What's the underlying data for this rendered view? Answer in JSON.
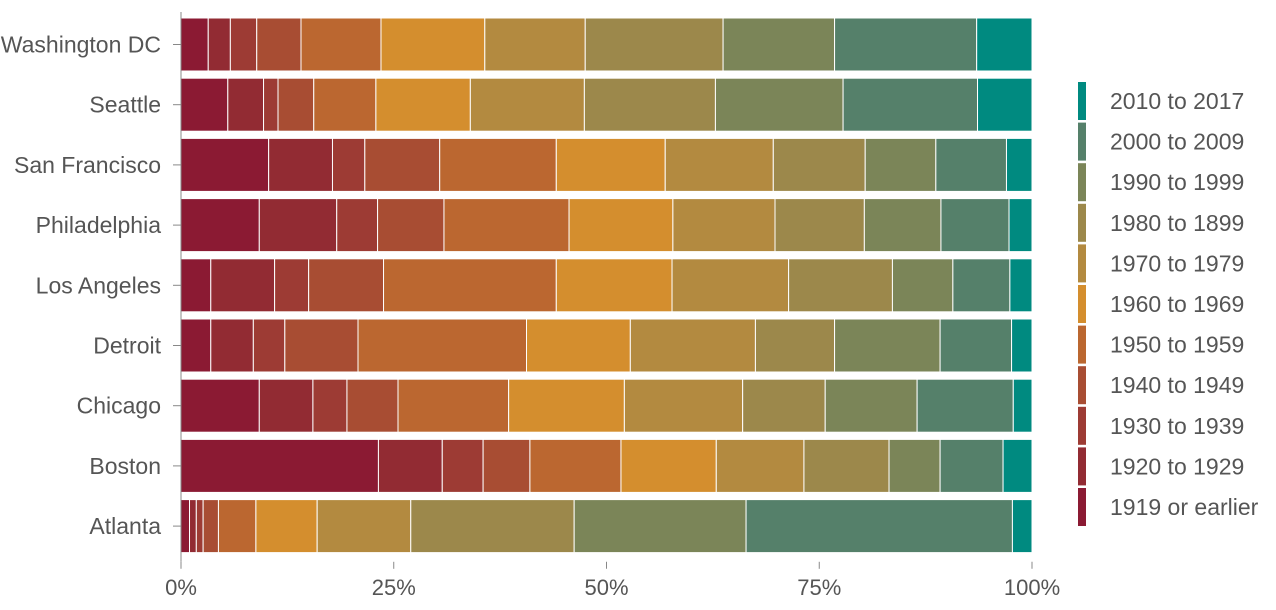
{
  "chart_data": {
    "type": "bar",
    "orientation": "horizontal",
    "stacked": true,
    "normalized": true,
    "xlim": [
      0,
      1
    ],
    "x_ticks": [
      "0%",
      "25%",
      "50%",
      "75%",
      "100%"
    ],
    "legend_position": "right",
    "grid": false,
    "categories": [
      "Washington DC",
      "Seattle",
      "San Francisco",
      "Philadelphia",
      "Los Angeles",
      "Detroit",
      "Chicago",
      "Boston",
      "Atlanta"
    ],
    "series": [
      {
        "name": "1919 or earlier",
        "color": "#8B1A33",
        "values": [
          0.032,
          0.055,
          0.103,
          0.092,
          0.035,
          0.035,
          0.092,
          0.232,
          0.01
        ]
      },
      {
        "name": "1920 to 1929",
        "color": "#922B33",
        "values": [
          0.026,
          0.042,
          0.075,
          0.091,
          0.075,
          0.05,
          0.063,
          0.075,
          0.008
        ]
      },
      {
        "name": "1930 to 1939",
        "color": "#9D3B34",
        "values": [
          0.031,
          0.017,
          0.038,
          0.048,
          0.04,
          0.037,
          0.04,
          0.048,
          0.008
        ]
      },
      {
        "name": "1940 to 1949",
        "color": "#A84D33",
        "values": [
          0.052,
          0.042,
          0.088,
          0.078,
          0.088,
          0.086,
          0.06,
          0.055,
          0.018
        ]
      },
      {
        "name": "1950 to 1959",
        "color": "#BB6730",
        "values": [
          0.094,
          0.073,
          0.137,
          0.147,
          0.203,
          0.198,
          0.13,
          0.107,
          0.044
        ]
      },
      {
        "name": "1960 to 1969",
        "color": "#D48E2E",
        "values": [
          0.122,
          0.111,
          0.128,
          0.122,
          0.136,
          0.122,
          0.136,
          0.112,
          0.072
        ]
      },
      {
        "name": "1970 to 1979",
        "color": "#B38A40",
        "values": [
          0.118,
          0.134,
          0.127,
          0.12,
          0.137,
          0.147,
          0.139,
          0.103,
          0.11
        ]
      },
      {
        "name": "1980 to 1899",
        "color": "#9C884B",
        "values": [
          0.162,
          0.154,
          0.108,
          0.105,
          0.122,
          0.093,
          0.097,
          0.1,
          0.192
        ]
      },
      {
        "name": "1990 to 1999",
        "color": "#7B8558",
        "values": [
          0.131,
          0.15,
          0.083,
          0.09,
          0.071,
          0.124,
          0.108,
          0.06,
          0.202
        ]
      },
      {
        "name": "2000 to 2009",
        "color": "#55806A",
        "values": [
          0.167,
          0.158,
          0.083,
          0.08,
          0.067,
          0.084,
          0.113,
          0.074,
          0.313
        ]
      },
      {
        "name": "2010 to 2017",
        "color": "#008A80",
        "values": [
          0.065,
          0.064,
          0.03,
          0.027,
          0.026,
          0.024,
          0.022,
          0.034,
          0.023
        ]
      }
    ]
  }
}
